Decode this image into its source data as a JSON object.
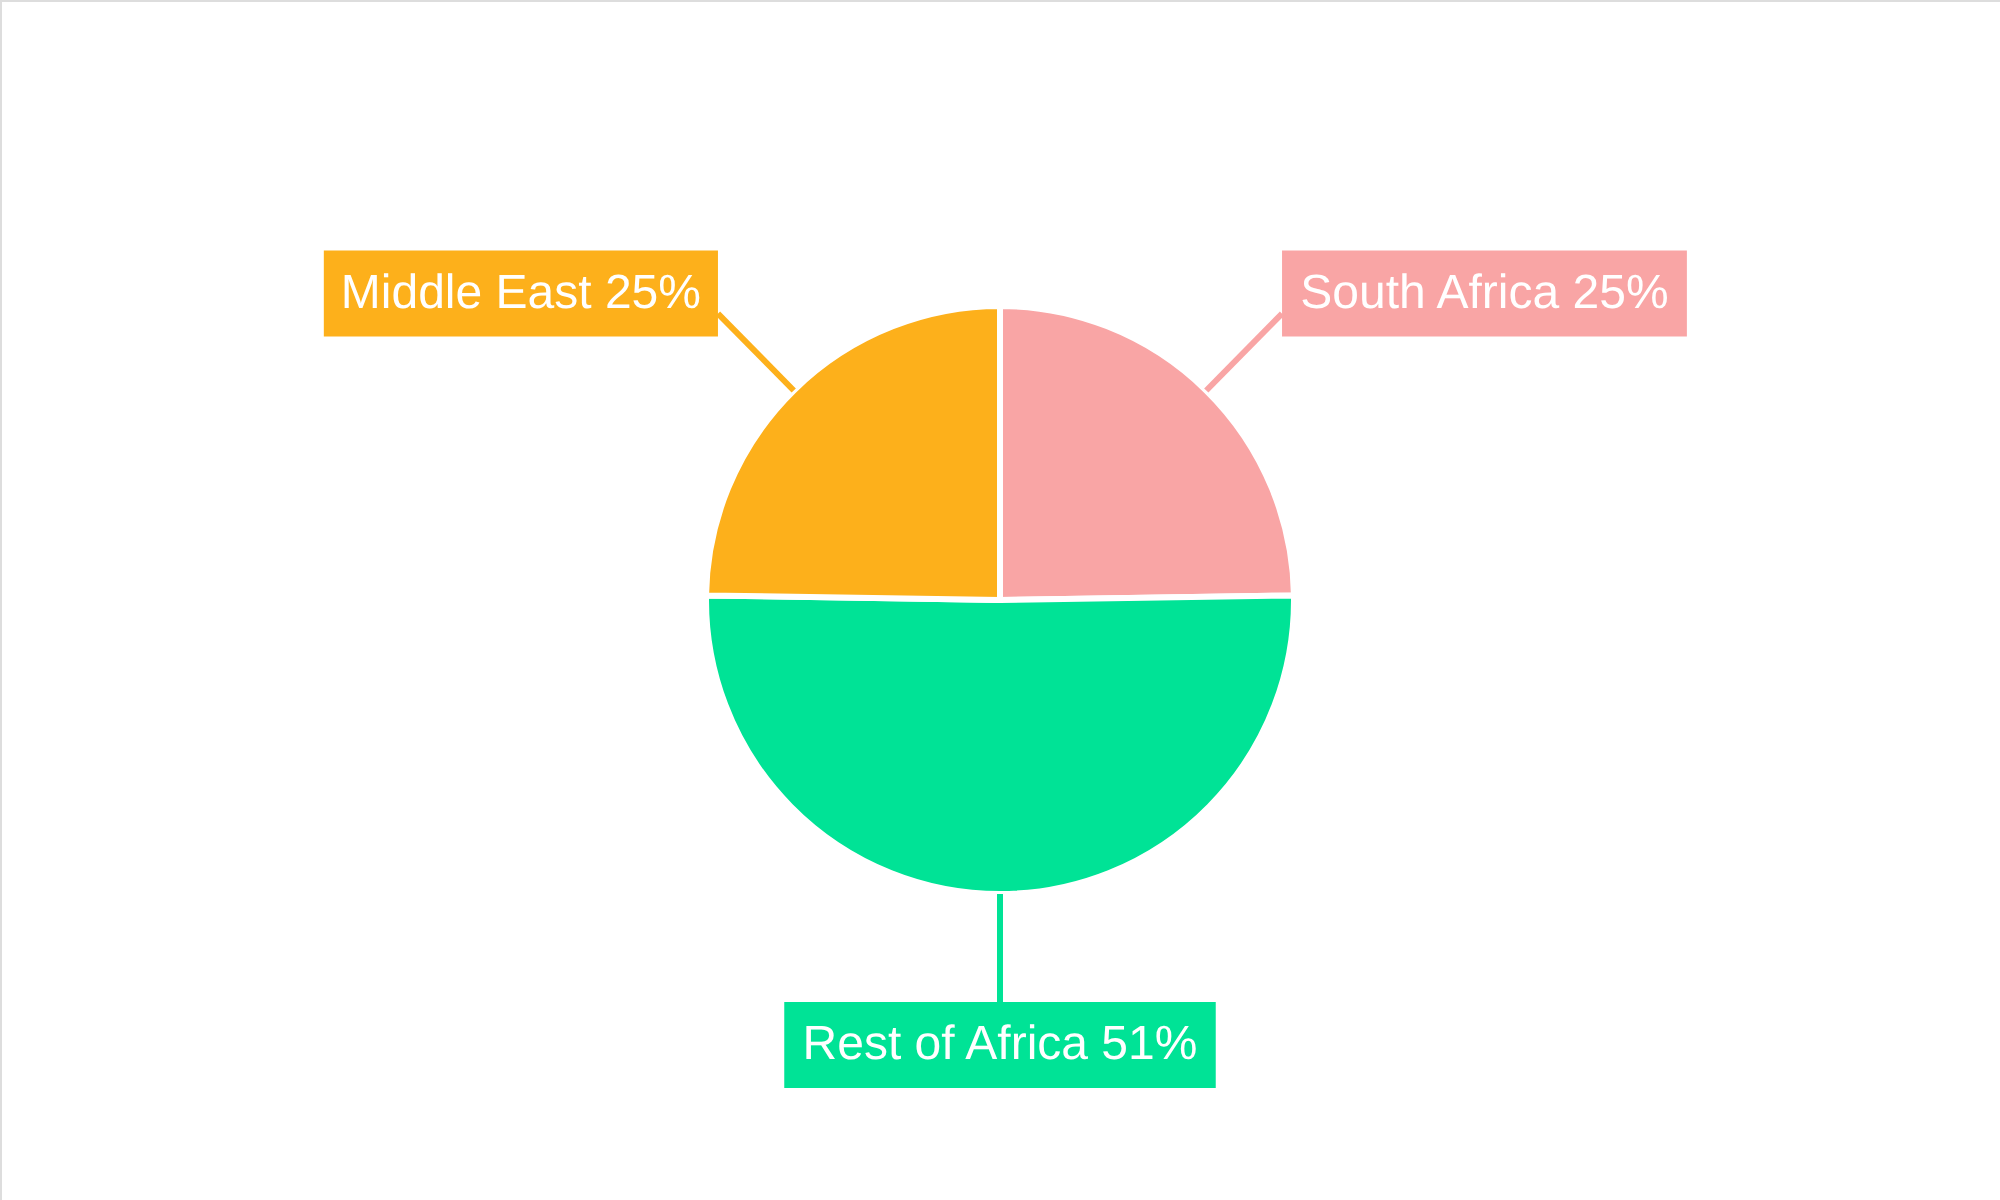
{
  "chart_data": {
    "type": "pie",
    "categories": [
      "South Africa",
      "Rest of Africa",
      "Middle East"
    ],
    "values": [
      25,
      51,
      25
    ],
    "colors": [
      "#f9a5a5",
      "#00e396",
      "#fdb01b"
    ],
    "value_labels": [
      "25%",
      "51%",
      "25%"
    ]
  }
}
